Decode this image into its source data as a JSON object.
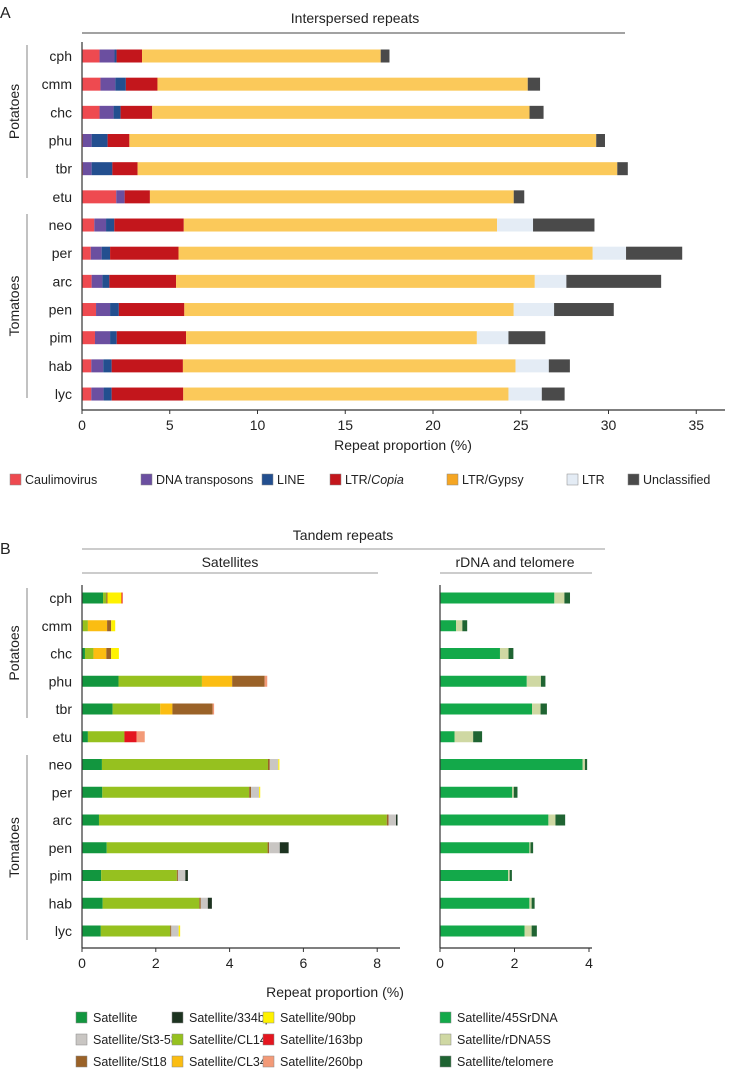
{
  "chart_data": [
    {
      "panel": "A",
      "type": "bar",
      "orientation": "horizontal",
      "stacked": true,
      "title": "Interspersed repeats",
      "xlabel": "Repeat proportion (%)",
      "xlim": [
        0,
        35
      ],
      "xticks": [
        0,
        5,
        10,
        15,
        20,
        25,
        30,
        35
      ],
      "groups": [
        {
          "name": "Potatoes",
          "members": [
            "cph",
            "cmm",
            "chc",
            "phu",
            "tbr"
          ]
        },
        {
          "name": "Tomatoes",
          "members": [
            "neo",
            "per",
            "arc",
            "pen",
            "pim",
            "hab",
            "lyc"
          ]
        }
      ],
      "categories": [
        "cph",
        "cmm",
        "chc",
        "phu",
        "tbr",
        "etu",
        "neo",
        "per",
        "arc",
        "pen",
        "pim",
        "hab",
        "lyc"
      ],
      "series": [
        {
          "name": "Caulimovirus",
          "color": "#ee4a50",
          "values": [
            1.0,
            1.05,
            1.0,
            0.05,
            0.05,
            1.95,
            0.7,
            0.5,
            0.55,
            0.8,
            0.74,
            0.53,
            0.53
          ]
        },
        {
          "name": "DNA transposons",
          "color": "#6b4fa0",
          "values": [
            0.85,
            0.85,
            0.8,
            0.5,
            0.5,
            0.48,
            0.67,
            0.62,
            0.61,
            0.8,
            0.86,
            0.68,
            0.7
          ]
        },
        {
          "name": "LINE",
          "color": "#234f8f",
          "values": [
            0.12,
            0.6,
            0.4,
            0.91,
            1.18,
            0,
            0.47,
            0.48,
            0.4,
            0.5,
            0.38,
            0.48,
            0.46
          ]
        },
        {
          "name": "LTR/Copia",
          "name_italic_part": "Copia",
          "color": "#c3161c",
          "values": [
            1.45,
            1.8,
            1.8,
            1.24,
            1.44,
            1.44,
            3.96,
            3.9,
            3.8,
            3.73,
            3.95,
            4.06,
            4.08
          ]
        },
        {
          "name": "LTR/Gypsy",
          "color": "#fbc95a",
          "legend_color": "#f5a623",
          "values": [
            13.6,
            21.1,
            21.5,
            26.6,
            27.33,
            20.73,
            17.85,
            23.6,
            20.44,
            18.77,
            16.57,
            18.95,
            18.53
          ]
        },
        {
          "name": "LTR",
          "color": "#e4ecf5",
          "values": [
            0,
            0,
            0,
            0,
            0,
            0,
            2.05,
            1.9,
            1.8,
            2.3,
            1.8,
            1.9,
            1.9
          ]
        },
        {
          "name": "Unclassified",
          "color": "#4a4a4a",
          "values": [
            0.5,
            0.7,
            0.8,
            0.5,
            0.6,
            0.6,
            3.5,
            3.2,
            5.4,
            3.4,
            2.1,
            1.2,
            1.3
          ]
        }
      ],
      "legend_position": "bottom"
    },
    {
      "panel": "B",
      "type": "bar",
      "orientation": "horizontal",
      "stacked": true,
      "title": "Tandem repeats",
      "subtitle": "Satellites",
      "xlabel": "Repeat proportion (%)",
      "xlim": [
        0,
        8.6
      ],
      "xticks": [
        0,
        2,
        4,
        6,
        8
      ],
      "categories": [
        "cph",
        "cmm",
        "chc",
        "phu",
        "tbr",
        "etu",
        "neo",
        "per",
        "arc",
        "pen",
        "pim",
        "hab",
        "lyc"
      ],
      "series": [
        {
          "name": "Satellite",
          "color": "#12963f",
          "values": [
            0.57,
            0.02,
            0.08,
            0.99,
            0.83,
            0.16,
            0.54,
            0.55,
            0.46,
            0.67,
            0.52,
            0.56,
            0.51
          ]
        },
        {
          "name": "Satellite/CL14",
          "color": "#96c11f",
          "values": [
            0.09,
            0.14,
            0.23,
            2.26,
            1.29,
            0.99,
            4.5,
            3.98,
            7.8,
            4.36,
            2.05,
            2.62,
            1.88
          ]
        },
        {
          "name": "Satellite/CL34",
          "color": "#fbbd12",
          "values": [
            0,
            0.52,
            0.35,
            0.82,
            0.33,
            0,
            0,
            0,
            0,
            0,
            0,
            0,
            0
          ]
        },
        {
          "name": "Satellite/St18",
          "color": "#9a6228",
          "values": [
            0.03,
            0.11,
            0.13,
            0.88,
            1.09,
            0,
            0.05,
            0.05,
            0.05,
            0.04,
            0.03,
            0.04,
            0.03
          ]
        },
        {
          "name": "Satellite/St3-58",
          "color": "#c9c6c3",
          "values": [
            0,
            0,
            0,
            0,
            0,
            0,
            0.23,
            0.22,
            0.2,
            0.29,
            0.2,
            0.19,
            0.2
          ]
        },
        {
          "name": "Satellite/334bp",
          "color": "#1d3320",
          "values": [
            0,
            0,
            0,
            0,
            0,
            0,
            0,
            0,
            0.04,
            0.24,
            0.07,
            0.11,
            0
          ]
        },
        {
          "name": "Satellite/90bp",
          "color": "#fff200",
          "values": [
            0.38,
            0.11,
            0.21,
            0,
            0,
            0,
            0.03,
            0.03,
            0,
            0,
            0,
            0,
            0.04
          ]
        },
        {
          "name": "Satellite/163bp",
          "color": "#e4151f",
          "values": [
            0.03,
            0,
            0,
            0,
            0,
            0.33,
            0,
            0,
            0,
            0,
            0,
            0,
            0
          ]
        },
        {
          "name": "Satellite/260bp",
          "color": "#f39a78",
          "values": [
            0,
            0,
            0,
            0.07,
            0.04,
            0.22,
            0,
            0,
            0,
            0,
            0,
            0,
            0
          ]
        }
      ]
    },
    {
      "panel": "B",
      "type": "bar",
      "orientation": "horizontal",
      "stacked": true,
      "subtitle": "rDNA and telomere",
      "xlim": [
        0,
        4.1
      ],
      "xticks": [
        0,
        2,
        4
      ],
      "categories": [
        "cph",
        "cmm",
        "chc",
        "phu",
        "tbr",
        "etu",
        "neo",
        "per",
        "arc",
        "pen",
        "pim",
        "hab",
        "lyc"
      ],
      "series": [
        {
          "name": "Satellite/45SrDNA",
          "color": "#13a94a",
          "values": [
            3.07,
            0.43,
            1.61,
            2.33,
            2.47,
            0.39,
            3.83,
            1.94,
            2.91,
            2.4,
            1.83,
            2.4,
            2.27
          ]
        },
        {
          "name": "Satellite/rDNA5S",
          "color": "#cfd8a3",
          "values": [
            0.27,
            0.17,
            0.23,
            0.38,
            0.23,
            0.5,
            0.06,
            0.04,
            0.19,
            0.03,
            0.04,
            0.06,
            0.19
          ]
        },
        {
          "name": "Satellite/telomere",
          "color": "#1f6432",
          "values": [
            0.15,
            0.13,
            0.13,
            0.12,
            0.17,
            0.24,
            0.06,
            0.1,
            0.26,
            0.07,
            0.06,
            0.08,
            0.14
          ]
        }
      ]
    }
  ],
  "legend_b_order": [
    "Satellite",
    "Satellite/334bp",
    "Satellite/90bp",
    "Satellite/45SrDNA",
    "Satellite/St3-58",
    "Satellite/CL14",
    "Satellite/163bp",
    "Satellite/rDNA5S",
    "Satellite/St18",
    "Satellite/CL34",
    "Satellite/260bp",
    "Satellite/telomere"
  ]
}
